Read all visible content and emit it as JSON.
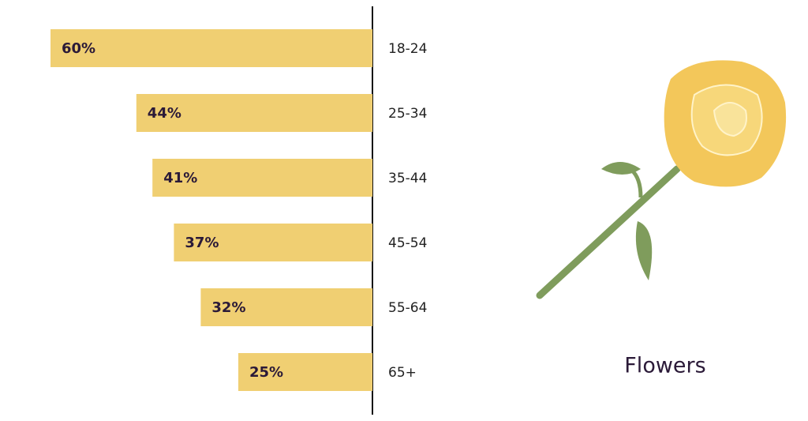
{
  "chart_data": {
    "type": "bar",
    "title": "Flowers",
    "categories": [
      "18-24",
      "25-34",
      "35-44",
      "45-54",
      "55-64",
      "65+"
    ],
    "values": [
      60,
      44,
      41,
      37,
      32,
      25
    ],
    "value_labels": [
      "60%",
      "44%",
      "41%",
      "37%",
      "32%",
      "25%"
    ],
    "color": "#f0cf72"
  }
}
